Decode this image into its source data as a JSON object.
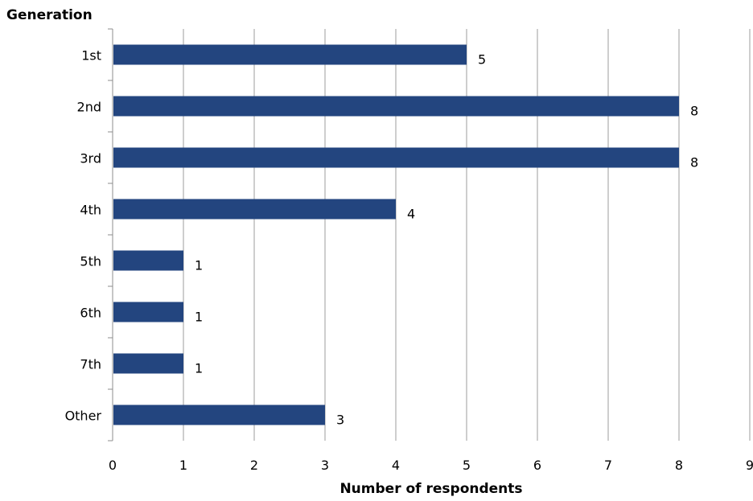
{
  "chart_data": {
    "type": "bar",
    "orientation": "horizontal",
    "ylabel": "Generation",
    "xlabel": "Number of respondents",
    "categories": [
      "1st",
      "2nd",
      "3rd",
      "4th",
      "5th",
      "6th",
      "7th",
      "Other"
    ],
    "values": [
      5,
      8,
      8,
      4,
      1,
      1,
      1,
      3
    ],
    "xlim": [
      0,
      9
    ],
    "xticks": [
      "0",
      "1",
      "2",
      "3",
      "4",
      "5",
      "6",
      "7",
      "8",
      "9"
    ],
    "grid": "vertical",
    "bar_color": "#23457f"
  }
}
